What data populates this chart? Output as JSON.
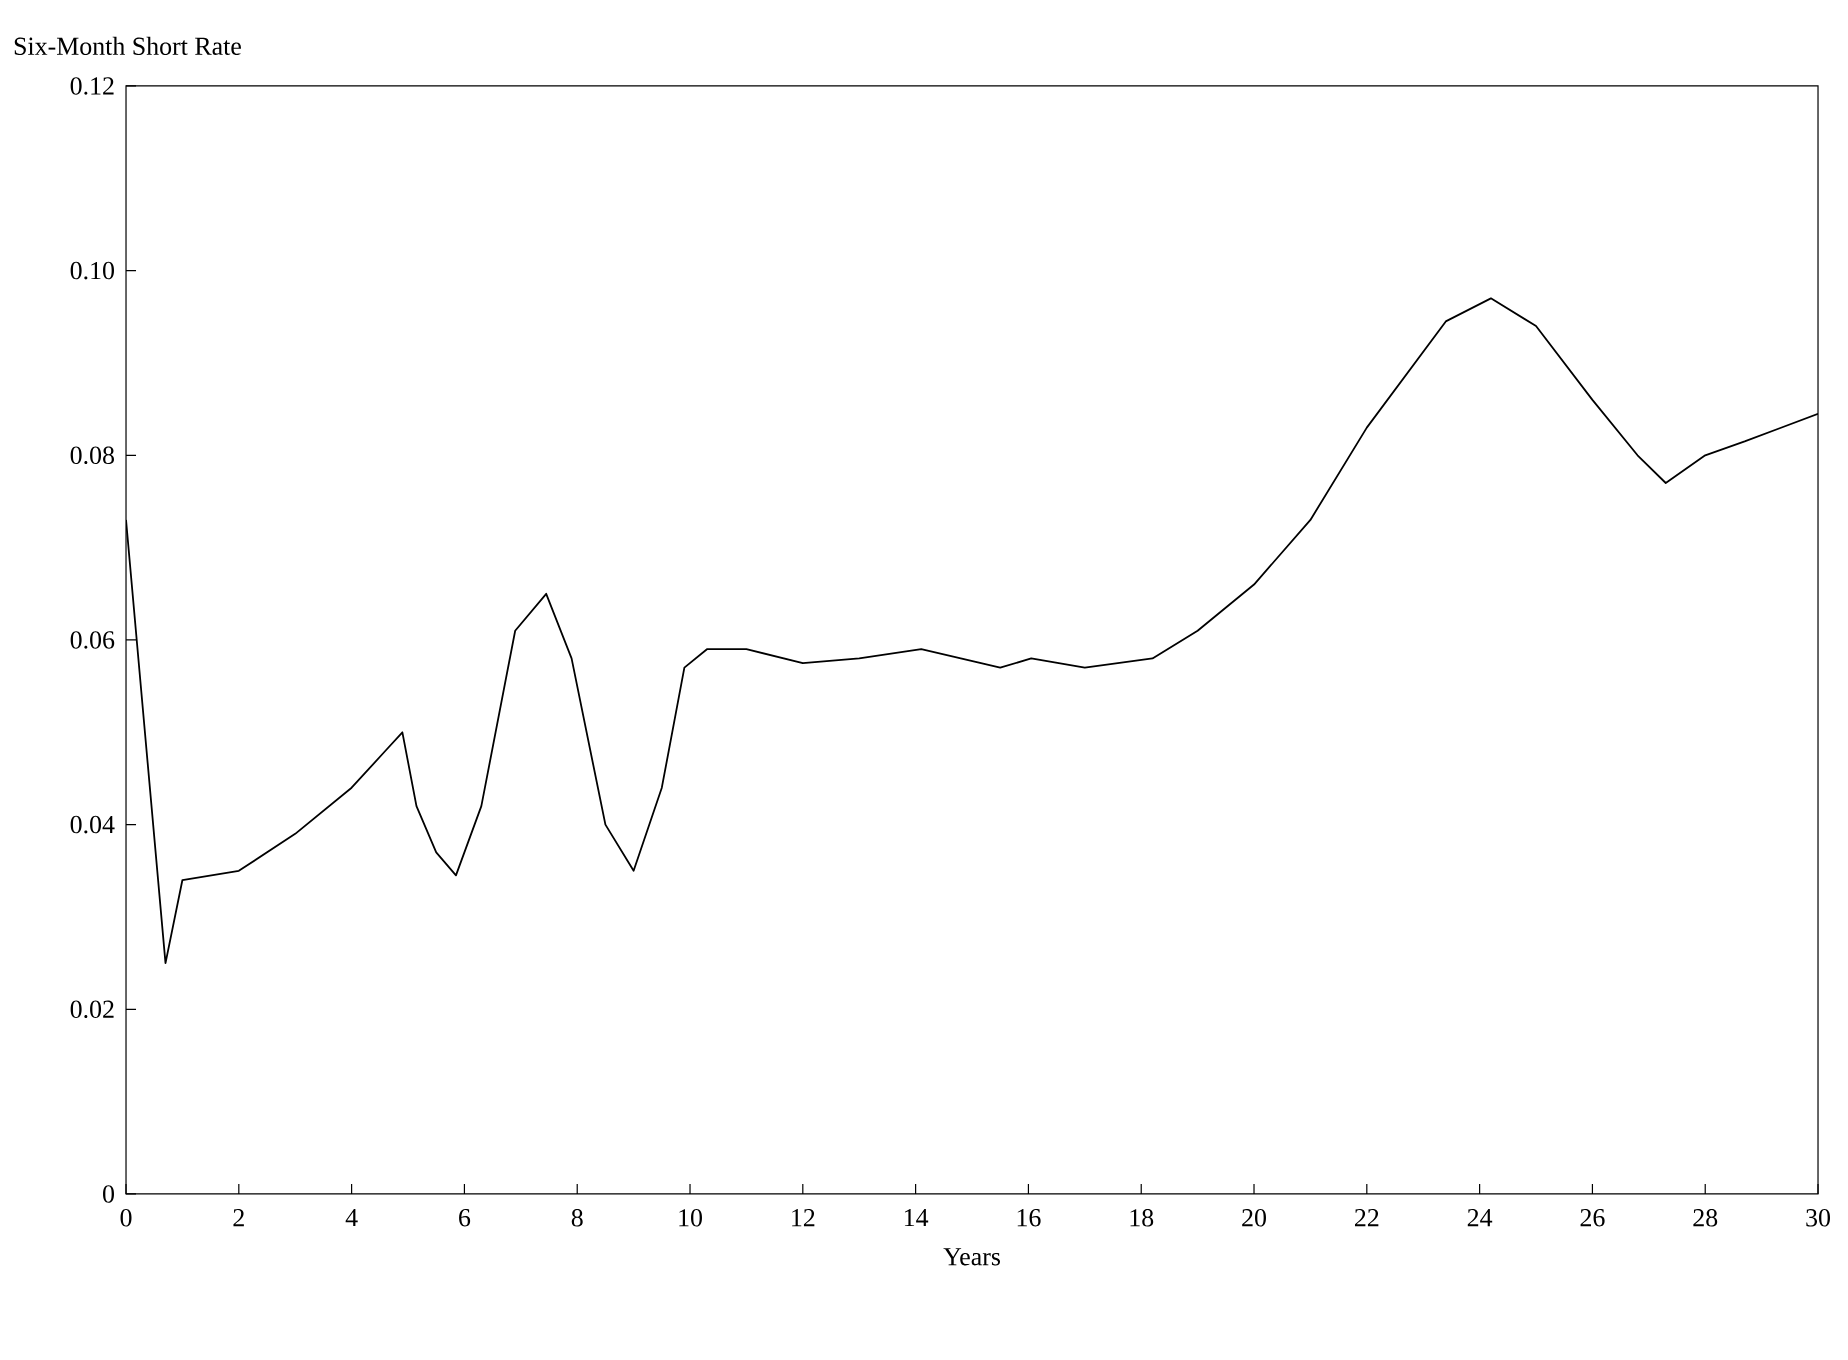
{
  "chart_data": {
    "type": "line",
    "title": "Six-Month Short Rate",
    "xlabel": "Years",
    "x": [
      0,
      0.7,
      1.0,
      2.0,
      3.0,
      4.0,
      4.6,
      4.9,
      5.15,
      5.5,
      5.85,
      6.3,
      6.9,
      7.45,
      7.9,
      8.5,
      9.0,
      9.5,
      9.9,
      10.3,
      11,
      12,
      13,
      14.1,
      15.5,
      16.05,
      17.0,
      18.2,
      19,
      20,
      21,
      22,
      23.4,
      24.2,
      25,
      26,
      26.8,
      27.3,
      28,
      28.7,
      30
    ],
    "series": [
      {
        "color": "#000000",
        "values": [
          0.073,
          0.025,
          0.034,
          0.035,
          0.039,
          0.044,
          0.048,
          0.05,
          0.042,
          0.037,
          0.0345,
          0.042,
          0.061,
          0.065,
          0.058,
          0.04,
          0.035,
          0.044,
          0.057,
          0.059,
          0.059,
          0.0575,
          0.058,
          0.059,
          0.057,
          0.058,
          0.057,
          0.058,
          0.061,
          0.066,
          0.073,
          0.083,
          0.0945,
          0.097,
          0.094,
          0.086,
          0.08,
          0.077,
          0.08,
          0.0815,
          0.0845
        ]
      }
    ],
    "xlim": [
      0,
      30
    ],
    "ylim": [
      0,
      0.12
    ],
    "xticks": [
      0,
      2,
      4,
      6,
      8,
      10,
      12,
      14,
      16,
      18,
      20,
      22,
      24,
      26,
      28,
      30
    ],
    "yticks": [
      {
        "value": 0,
        "label": "0"
      },
      {
        "value": 0.02,
        "label": "0.02"
      },
      {
        "value": 0.04,
        "label": "0.04"
      },
      {
        "value": 0.06,
        "label": "0.06"
      },
      {
        "value": 0.08,
        "label": "0.08"
      },
      {
        "value": 0.1,
        "label": "0.10"
      },
      {
        "value": 0.12,
        "label": "0.12"
      }
    ],
    "grid": false,
    "legend": false,
    "marker": "none",
    "line_style": "solid"
  }
}
